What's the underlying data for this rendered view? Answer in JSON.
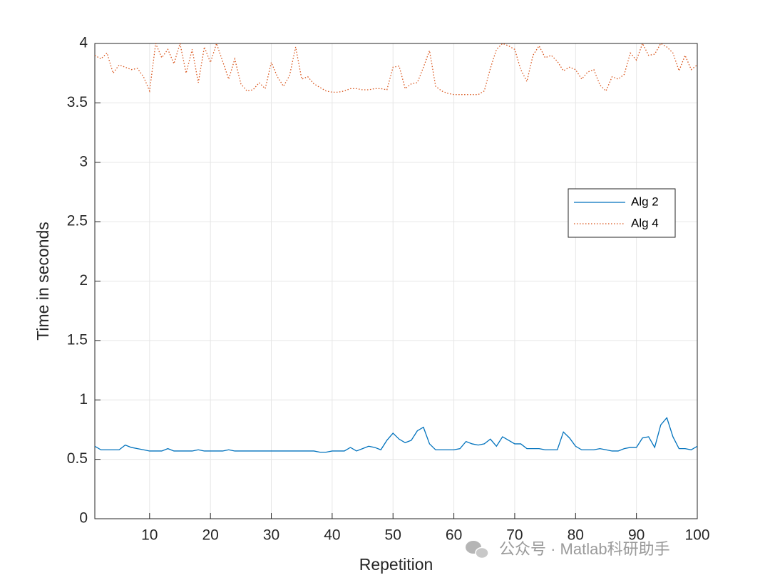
{
  "chart_data": {
    "type": "line",
    "xlabel": "Repetition",
    "ylabel": "Time in seconds",
    "x": [
      1,
      2,
      3,
      4,
      5,
      6,
      7,
      8,
      9,
      10,
      11,
      12,
      13,
      14,
      15,
      16,
      17,
      18,
      19,
      20,
      21,
      22,
      23,
      24,
      25,
      26,
      27,
      28,
      29,
      30,
      31,
      32,
      33,
      34,
      35,
      36,
      37,
      38,
      39,
      40,
      41,
      42,
      43,
      44,
      45,
      46,
      47,
      48,
      49,
      50,
      51,
      52,
      53,
      54,
      55,
      56,
      57,
      58,
      59,
      60,
      61,
      62,
      63,
      64,
      65,
      66,
      67,
      68,
      69,
      70,
      71,
      72,
      73,
      74,
      75,
      76,
      77,
      78,
      79,
      80,
      81,
      82,
      83,
      84,
      85,
      86,
      87,
      88,
      89,
      90,
      91,
      92,
      93,
      94,
      95,
      96,
      97,
      98,
      99,
      100
    ],
    "series": [
      {
        "name": "Alg 2",
        "color": "#0072bd",
        "dash": "solid",
        "values": [
          0.61,
          0.58,
          0.58,
          0.58,
          0.58,
          0.62,
          0.6,
          0.59,
          0.58,
          0.57,
          0.57,
          0.57,
          0.59,
          0.57,
          0.57,
          0.57,
          0.57,
          0.58,
          0.57,
          0.57,
          0.57,
          0.57,
          0.58,
          0.57,
          0.57,
          0.57,
          0.57,
          0.57,
          0.57,
          0.57,
          0.57,
          0.57,
          0.57,
          0.57,
          0.57,
          0.57,
          0.57,
          0.56,
          0.56,
          0.57,
          0.57,
          0.57,
          0.6,
          0.57,
          0.59,
          0.61,
          0.6,
          0.58,
          0.66,
          0.72,
          0.67,
          0.64,
          0.66,
          0.74,
          0.77,
          0.63,
          0.58,
          0.58,
          0.58,
          0.58,
          0.59,
          0.65,
          0.63,
          0.62,
          0.63,
          0.67,
          0.61,
          0.69,
          0.66,
          0.63,
          0.63,
          0.59,
          0.59,
          0.59,
          0.58,
          0.58,
          0.58,
          0.73,
          0.68,
          0.61,
          0.58,
          0.58,
          0.58,
          0.59,
          0.58,
          0.57,
          0.57,
          0.59,
          0.6,
          0.6,
          0.68,
          0.69,
          0.6,
          0.79,
          0.85,
          0.69,
          0.59,
          0.59,
          0.58,
          0.61
        ]
      },
      {
        "name": "Alg 4",
        "color": "#d95319",
        "dash": "dotted",
        "values": [
          3.9,
          3.87,
          3.92,
          3.75,
          3.82,
          3.8,
          3.78,
          3.79,
          3.72,
          3.6,
          4.0,
          3.88,
          3.95,
          3.83,
          4.0,
          3.75,
          3.95,
          3.67,
          3.97,
          3.84,
          4.0,
          3.85,
          3.7,
          3.87,
          3.66,
          3.6,
          3.61,
          3.67,
          3.62,
          3.84,
          3.72,
          3.64,
          3.73,
          3.97,
          3.7,
          3.72,
          3.66,
          3.63,
          3.6,
          3.59,
          3.59,
          3.6,
          3.62,
          3.62,
          3.61,
          3.61,
          3.62,
          3.62,
          3.61,
          3.8,
          3.81,
          3.62,
          3.66,
          3.67,
          3.8,
          3.94,
          3.64,
          3.6,
          3.58,
          3.57,
          3.57,
          3.57,
          3.57,
          3.57,
          3.6,
          3.79,
          3.95,
          4.0,
          3.98,
          3.95,
          3.78,
          3.68,
          3.9,
          3.98,
          3.88,
          3.9,
          3.85,
          3.77,
          3.8,
          3.78,
          3.7,
          3.76,
          3.78,
          3.65,
          3.6,
          3.72,
          3.7,
          3.74,
          3.92,
          3.86,
          4.0,
          3.9,
          3.91,
          4.0,
          3.97,
          3.92,
          3.77,
          3.9,
          3.78,
          3.82
        ]
      }
    ],
    "xlim": [
      1,
      100
    ],
    "xticks": [
      10,
      20,
      30,
      40,
      50,
      60,
      70,
      80,
      90,
      100
    ],
    "ylim": [
      0,
      4
    ],
    "yticks": [
      0,
      0.5,
      1,
      1.5,
      2,
      2.5,
      3,
      3.5,
      4
    ],
    "grid": true,
    "legend": "east",
    "watermark": "公众号 · Matlab科研助手"
  }
}
